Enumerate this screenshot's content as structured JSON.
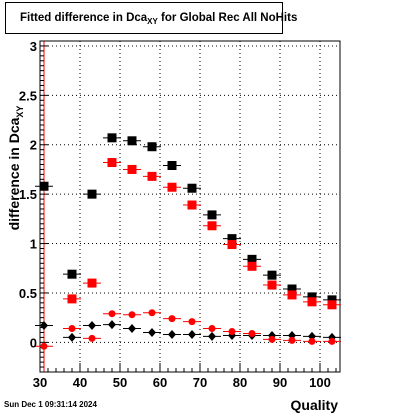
{
  "title": {
    "prefix": "Fitted difference in Dca",
    "sub": "XY",
    "suffix": "for Global Rec All NoHits"
  },
  "timestamp": "Sun Dec  1 09:31:14 2024",
  "chart_data": {
    "type": "scatter",
    "title": "Fitted difference in Dca XY for Global Rec All NoHits",
    "xlabel": "Quality",
    "ylabel_main": "difference in Dca",
    "ylabel_sub": "XY",
    "xlim": [
      30,
      105
    ],
    "ylim": [
      -0.3,
      3.05
    ],
    "x_ticks": [
      30,
      40,
      50,
      60,
      70,
      80,
      90,
      100
    ],
    "y_ticks": [
      0,
      0.5,
      1,
      1.5,
      2,
      2.5,
      3
    ],
    "y_tick_labels": [
      "0",
      "0.5",
      "1",
      "1.5",
      "2",
      "2.5",
      "3"
    ],
    "grid": true,
    "vertical_line_x": 31,
    "colors": {
      "black": "#000000",
      "red": "#ff0000",
      "vline": "#ff0000"
    },
    "series": [
      {
        "marker": "square",
        "color": "#000000",
        "x": [
          31,
          38,
          43,
          48,
          53,
          58,
          63,
          68,
          73,
          78,
          83,
          88,
          93,
          98,
          103
        ],
        "y": [
          1.58,
          0.69,
          1.5,
          2.07,
          2.04,
          1.98,
          1.79,
          1.56,
          1.29,
          1.05,
          0.84,
          0.68,
          0.54,
          0.46,
          0.43
        ]
      },
      {
        "marker": "square",
        "color": "#ff0000",
        "x": [
          38,
          43,
          48,
          53,
          58,
          63,
          68,
          73,
          78,
          83,
          88,
          93,
          98,
          103
        ],
        "y": [
          0.44,
          0.6,
          1.82,
          1.75,
          1.68,
          1.57,
          1.39,
          1.18,
          0.99,
          0.77,
          0.58,
          0.48,
          0.41,
          0.38
        ]
      },
      {
        "marker": "diamond",
        "color": "#000000",
        "x": [
          31,
          38,
          43,
          48,
          53,
          58,
          63,
          68,
          73,
          78,
          83,
          88,
          93,
          98,
          103
        ],
        "y": [
          0.17,
          0.05,
          0.17,
          0.18,
          0.14,
          0.1,
          0.08,
          0.08,
          0.06,
          0.07,
          0.07,
          0.07,
          0.07,
          0.06,
          0.05
        ]
      },
      {
        "marker": "circle",
        "color": "#ff0000",
        "x": [
          31,
          38,
          43,
          48,
          53,
          58,
          63,
          68,
          73,
          78,
          83,
          88,
          93,
          98,
          103
        ],
        "y": [
          -0.04,
          0.14,
          0.04,
          0.29,
          0.28,
          0.3,
          0.24,
          0.21,
          0.14,
          0.11,
          0.09,
          0.03,
          0.02,
          0.01,
          0.01
        ]
      }
    ]
  }
}
